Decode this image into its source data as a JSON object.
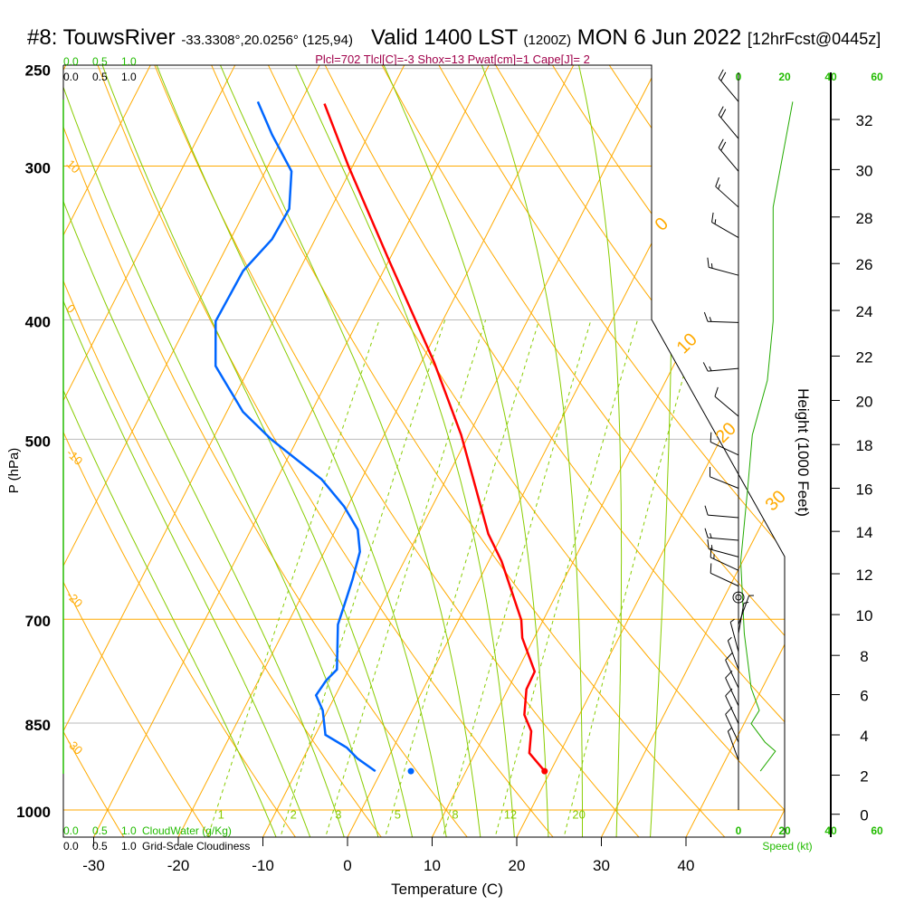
{
  "header": {
    "station": "#8: TouwsRiver",
    "coords": "-33.3308°,20.0256° (125,94)",
    "valid": "Valid 1400 LST",
    "zulu": "(1200Z)",
    "date": "MON 6 Jun 2022",
    "forecast": "[12hrFcst@0445z]"
  },
  "params_line": "Plcl=702 Tlcl[C]=-3 Shox=13 Pwat[cm]=1 Cape[J]= 2",
  "cloud_scale": {
    "ticks": [
      "0.0",
      "0.5",
      "1.0"
    ],
    "cloudwater_label": "CloudWater (g/Kg)",
    "cloudiness_label": "Grid-Scale Cloudiness",
    "cloudwater_color": "#22bb00"
  },
  "speed_axis": {
    "ticks": [
      "0",
      "20",
      "40",
      "60"
    ],
    "label": "Speed (kt)",
    "color": "#22bb00"
  },
  "colors": {
    "temperature": "#ff0000",
    "dewpoint": "#0066ff",
    "isotherm": "#ffaa00",
    "moist": "#88cc00",
    "wind_speed": "#22aa00"
  },
  "chart_data": {
    "type": "skew-t",
    "title": "#8: TouwsRiver Valid 1400 LST (1200Z) MON 6 Jun 2022",
    "xlabel": "Temperature (C)",
    "ylabel": "P (hPa)",
    "y2label": "Height (1000 Feet)",
    "xlim": [
      -33,
      52
    ],
    "ylim": [
      1052,
      250
    ],
    "x_ticks": [
      "-30",
      "-20",
      "-10",
      "0",
      "10",
      "20",
      "30",
      "40"
    ],
    "x_tick_values": [
      -30,
      -20,
      -10,
      0,
      10,
      20,
      30,
      40
    ],
    "p_ticks": [
      "250",
      "300",
      "400",
      "500",
      "700",
      "850",
      "1000"
    ],
    "p_tick_values": [
      250,
      300,
      400,
      500,
      700,
      850,
      1000
    ],
    "height_ticks": [
      "0",
      "2",
      "4",
      "6",
      "8",
      "10",
      "12",
      "14",
      "16",
      "18",
      "20",
      "22",
      "24",
      "26",
      "28",
      "30",
      "32"
    ],
    "height_tick_pressures": [
      1008,
      937,
      869,
      806,
      749,
      694,
      643,
      594,
      548,
      505,
      465,
      428,
      393,
      360,
      330,
      302,
      275
    ],
    "isotherm_labels": [
      {
        "text": "0",
        "t": 0
      },
      {
        "text": "10",
        "t": 10
      },
      {
        "text": "20",
        "t": 20
      },
      {
        "text": "30",
        "t": 30
      }
    ],
    "left_isotherm_labels": [
      {
        "text": "10",
        "p": 300
      },
      {
        "text": "0",
        "p": 393
      },
      {
        "text": "-10",
        "p": 515
      },
      {
        "text": "-20",
        "p": 672
      },
      {
        "text": "-30",
        "p": 885
      }
    ],
    "mixing_ratio_labels": [
      "1",
      "2",
      "3",
      "5",
      "8",
      "12",
      "20"
    ],
    "mixing_ratio_values": [
      1,
      2,
      3,
      5,
      8,
      12,
      20
    ],
    "temperature": {
      "name": "Temperature",
      "p": [
        930,
        899,
        863,
        837,
        798,
        772,
        725,
        701,
        628,
        597,
        496,
        433,
        359,
        300,
        267
      ],
      "t": [
        19.3,
        16.4,
        15.3,
        13.5,
        12.2,
        12.1,
        8.6,
        7.4,
        1.5,
        -1.7,
        -10.9,
        -18.5,
        -29.8,
        -40.5,
        -47.1
      ]
    },
    "dewpoint": {
      "name": "Dewpoint",
      "p": [
        930,
        908,
        890,
        869,
        830,
        807,
        785,
        769,
        707,
        683,
        650,
        617,
        592,
        567,
        539,
        500,
        475,
        436,
        401,
        365,
        344,
        325,
        303,
        283,
        266
      ],
      "t": [
        -0.7,
        -3.6,
        -5.5,
        -8.8,
        -10.6,
        -12.3,
        -12.0,
        -11.4,
        -14.0,
        -14.4,
        -15.0,
        -15.8,
        -17.4,
        -20.4,
        -24.7,
        -33.1,
        -38.1,
        -44.1,
        -46.8,
        -46.6,
        -45.1,
        -44.9,
        -46.9,
        -51.4,
        -55.1
      ]
    },
    "surface_dewpoint_marker": {
      "p": 930,
      "t": 3.5
    },
    "wind_speed": {
      "p": [
        266,
        324,
        401,
        448,
        496,
        548,
        628,
        719,
        796,
        830,
        851,
        881,
        896,
        930
      ],
      "kt": [
        23.5,
        15,
        15,
        12.5,
        6,
        4,
        1,
        2.5,
        5.5,
        9,
        5.5,
        11.5,
        16,
        9.5
      ]
    },
    "wind_barbs": [
      {
        "p": 266,
        "dir": 320,
        "kt": 20
      },
      {
        "p": 285,
        "dir": 320,
        "kt": 20
      },
      {
        "p": 303,
        "dir": 320,
        "kt": 20
      },
      {
        "p": 324,
        "dir": 312,
        "kt": 15
      },
      {
        "p": 343,
        "dir": 300,
        "kt": 15
      },
      {
        "p": 368,
        "dir": 285,
        "kt": 15
      },
      {
        "p": 402,
        "dir": 272,
        "kt": 15
      },
      {
        "p": 438,
        "dir": 265,
        "kt": 15
      },
      {
        "p": 479,
        "dir": 310,
        "kt": 10
      },
      {
        "p": 515,
        "dir": 295,
        "kt": 10
      },
      {
        "p": 548,
        "dir": 292,
        "kt": 10
      },
      {
        "p": 579,
        "dir": 275,
        "kt": 10
      },
      {
        "p": 604,
        "dir": 275,
        "kt": 15
      },
      {
        "p": 623,
        "dir": 285,
        "kt": 15
      },
      {
        "p": 639,
        "dir": 295,
        "kt": 15
      },
      {
        "p": 658,
        "dir": 295,
        "kt": 10
      },
      {
        "p": 672,
        "dir": 0,
        "kt": 0
      },
      {
        "p": 707,
        "dir": 20,
        "kt": 5
      },
      {
        "p": 719,
        "dir": 10,
        "kt": 5
      },
      {
        "p": 744,
        "dir": 345,
        "kt": 5
      },
      {
        "p": 769,
        "dir": 340,
        "kt": 5
      },
      {
        "p": 796,
        "dir": 335,
        "kt": 10
      },
      {
        "p": 823,
        "dir": 335,
        "kt": 10
      },
      {
        "p": 851,
        "dir": 335,
        "kt": 10
      },
      {
        "p": 881,
        "dir": 335,
        "kt": 10
      },
      {
        "p": 911,
        "dir": 340,
        "kt": 5
      }
    ]
  }
}
